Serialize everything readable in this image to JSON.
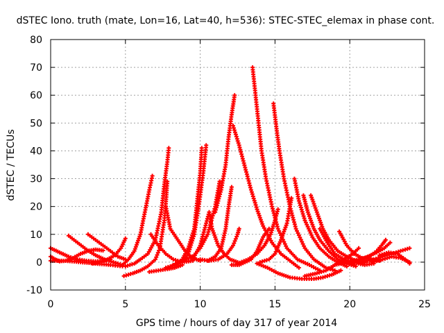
{
  "chart_data": {
    "type": "scatter",
    "title": "dSTEC Iono. truth (mate, Lon=16, Lat=40, h=536): STEC-STEC_elemax in phase cont.",
    "xlabel": "GPS time / hours of day 317 of year 2014",
    "ylabel": "dSTEC  / TECUs",
    "xlim": [
      0,
      25
    ],
    "ylim": [
      -10,
      80
    ],
    "xticks": [
      0,
      5,
      10,
      15,
      20,
      25
    ],
    "yticks": [
      -10,
      0,
      10,
      20,
      30,
      40,
      50,
      60,
      70,
      80
    ],
    "grid": true,
    "marker": "plus",
    "color": "#ff0000",
    "series": [
      {
        "points": [
          [
            0.0,
            5
          ],
          [
            0.6,
            3.5
          ],
          [
            1.2,
            2
          ],
          [
            1.8,
            1
          ],
          [
            2.4,
            0.5
          ],
          [
            3.0,
            0.3
          ],
          [
            3.6,
            0.5
          ],
          [
            4.0,
            1
          ]
        ]
      },
      {
        "points": [
          [
            0.0,
            2
          ],
          [
            0.3,
            1
          ],
          [
            0.6,
            0.3
          ],
          [
            1.0,
            0.5
          ],
          [
            1.5,
            1.5
          ],
          [
            2.0,
            3
          ],
          [
            2.5,
            4
          ],
          [
            3.0,
            4.5
          ],
          [
            3.5,
            4.2
          ]
        ]
      },
      {
        "points": [
          [
            1.2,
            9.5
          ],
          [
            1.8,
            7
          ],
          [
            2.4,
            4.5
          ],
          [
            3.0,
            2.5
          ],
          [
            3.6,
            1
          ],
          [
            4.2,
            0
          ],
          [
            4.8,
            -1
          ]
        ]
      },
      {
        "points": [
          [
            2.5,
            10
          ],
          [
            3.0,
            8
          ],
          [
            3.5,
            6
          ],
          [
            4.0,
            4
          ],
          [
            4.5,
            2
          ],
          [
            5.0,
            1
          ]
        ]
      },
      {
        "points": [
          [
            2.8,
            -0.5
          ],
          [
            3.3,
            0
          ],
          [
            3.8,
            1
          ],
          [
            4.3,
            2.5
          ],
          [
            4.7,
            5
          ],
          [
            5.0,
            8.5
          ]
        ]
      },
      {
        "points": [
          [
            0.0,
            0.5
          ],
          [
            1.0,
            0.5
          ],
          [
            2.0,
            0
          ],
          [
            3.0,
            -0.5
          ],
          [
            4.0,
            -1
          ],
          [
            4.8,
            -1.5
          ]
        ]
      },
      {
        "points": [
          [
            4.8,
            -1
          ],
          [
            5.2,
            1
          ],
          [
            5.6,
            4
          ],
          [
            6.0,
            10
          ],
          [
            6.3,
            18
          ],
          [
            6.6,
            26
          ],
          [
            6.8,
            31
          ]
        ]
      },
      {
        "points": [
          [
            4.9,
            -5
          ],
          [
            5.5,
            -4
          ],
          [
            6.0,
            -3
          ],
          [
            6.5,
            -1.5
          ],
          [
            7.0,
            1
          ],
          [
            7.3,
            5
          ],
          [
            7.6,
            15
          ],
          [
            7.7,
            21
          ],
          [
            7.8,
            29
          ]
        ]
      },
      {
        "points": [
          [
            5.0,
            -1.5
          ],
          [
            5.6,
            -0.5
          ],
          [
            6.0,
            1
          ],
          [
            6.5,
            3
          ],
          [
            7.0,
            8
          ],
          [
            7.4,
            18
          ],
          [
            7.6,
            28
          ],
          [
            7.8,
            36
          ],
          [
            7.9,
            41
          ]
        ]
      },
      {
        "points": [
          [
            6.6,
            -3.5
          ],
          [
            7.2,
            -3
          ],
          [
            7.8,
            -2.5
          ],
          [
            8.3,
            -2
          ],
          [
            8.8,
            -1
          ]
        ]
      },
      {
        "points": [
          [
            6.7,
            10
          ],
          [
            7.2,
            6
          ],
          [
            7.7,
            3
          ],
          [
            8.2,
            1
          ],
          [
            8.8,
            0
          ],
          [
            9.5,
            0.5
          ]
        ]
      },
      {
        "points": [
          [
            7.7,
            20
          ],
          [
            8.0,
            12
          ],
          [
            8.5,
            8
          ],
          [
            9.0,
            4
          ],
          [
            9.5,
            1.5
          ],
          [
            10.0,
            0.5
          ]
        ]
      },
      {
        "points": [
          [
            7.7,
            -2
          ],
          [
            8.3,
            -1
          ],
          [
            8.8,
            1
          ],
          [
            9.2,
            5
          ],
          [
            9.6,
            12
          ],
          [
            9.8,
            22
          ],
          [
            10.0,
            32
          ],
          [
            10.1,
            41
          ]
        ]
      },
      {
        "points": [
          [
            8.2,
            -1
          ],
          [
            8.8,
            0
          ],
          [
            9.2,
            3
          ],
          [
            9.6,
            10
          ],
          [
            9.9,
            20
          ],
          [
            10.2,
            32
          ],
          [
            10.4,
            42
          ]
        ]
      },
      {
        "points": [
          [
            9.0,
            1
          ],
          [
            9.5,
            2
          ],
          [
            10.0,
            5
          ],
          [
            10.5,
            10
          ],
          [
            11.0,
            20
          ],
          [
            11.3,
            29
          ]
        ]
      },
      {
        "points": [
          [
            9.5,
            1
          ],
          [
            10.0,
            6
          ],
          [
            10.4,
            14
          ],
          [
            10.6,
            18
          ],
          [
            10.8,
            12
          ],
          [
            11.2,
            6
          ],
          [
            11.6,
            3
          ],
          [
            12.0,
            1
          ],
          [
            12.5,
            0
          ]
        ]
      },
      {
        "points": [
          [
            10.0,
            1
          ],
          [
            10.6,
            0.5
          ],
          [
            11.2,
            1
          ],
          [
            11.8,
            3
          ],
          [
            12.2,
            6
          ],
          [
            12.5,
            10
          ],
          [
            12.6,
            12
          ]
        ]
      },
      {
        "points": [
          [
            10.5,
            0.5
          ],
          [
            11.0,
            2
          ],
          [
            11.4,
            5
          ],
          [
            11.7,
            12
          ],
          [
            11.9,
            20
          ],
          [
            12.1,
            27
          ]
        ]
      },
      {
        "points": [
          [
            11.0,
            18
          ],
          [
            11.4,
            26
          ],
          [
            11.7,
            35
          ],
          [
            11.9,
            45
          ],
          [
            12.1,
            53
          ],
          [
            12.3,
            60
          ]
        ]
      },
      {
        "points": [
          [
            12.2,
            49
          ],
          [
            12.6,
            42
          ],
          [
            13.0,
            34
          ],
          [
            13.4,
            26
          ],
          [
            13.8,
            19
          ],
          [
            14.2,
            13
          ],
          [
            14.8,
            7
          ],
          [
            15.4,
            3
          ],
          [
            16.0,
            0.5
          ],
          [
            16.6,
            -2
          ]
        ]
      },
      {
        "points": [
          [
            12.1,
            -1
          ],
          [
            12.6,
            -1
          ],
          [
            13.0,
            0
          ],
          [
            13.4,
            1
          ],
          [
            13.8,
            4
          ],
          [
            14.2,
            9
          ],
          [
            14.6,
            12
          ]
        ]
      },
      {
        "points": [
          [
            13.5,
            70
          ],
          [
            13.7,
            60
          ],
          [
            13.9,
            50
          ],
          [
            14.1,
            40
          ],
          [
            14.4,
            30
          ],
          [
            14.8,
            20
          ],
          [
            15.2,
            12
          ],
          [
            15.8,
            5
          ],
          [
            16.5,
            1
          ],
          [
            17.3,
            -1
          ],
          [
            18.0,
            -3
          ]
        ]
      },
      {
        "points": [
          [
            14.9,
            57
          ],
          [
            15.1,
            48
          ],
          [
            15.3,
            40
          ],
          [
            15.6,
            30
          ],
          [
            16.0,
            20
          ],
          [
            16.4,
            12
          ],
          [
            17.0,
            5
          ],
          [
            17.6,
            1
          ],
          [
            18.4,
            -2
          ],
          [
            19.0,
            -3
          ]
        ]
      },
      {
        "points": [
          [
            12.5,
            -0.5
          ],
          [
            13.2,
            1
          ],
          [
            13.8,
            3
          ],
          [
            14.3,
            6
          ],
          [
            14.7,
            10
          ],
          [
            15.0,
            15
          ],
          [
            15.2,
            19
          ]
        ]
      },
      {
        "points": [
          [
            14.0,
            0
          ],
          [
            14.6,
            1
          ],
          [
            15.0,
            3
          ],
          [
            15.4,
            8
          ],
          [
            15.8,
            14
          ],
          [
            16.0,
            20
          ],
          [
            16.1,
            23
          ]
        ]
      },
      {
        "points": [
          [
            13.8,
            -0.5
          ],
          [
            14.5,
            -2
          ],
          [
            15.2,
            -4
          ],
          [
            16.0,
            -5.5
          ],
          [
            16.8,
            -6
          ],
          [
            17.6,
            -6
          ],
          [
            18.2,
            -5.5
          ],
          [
            18.8,
            -4.5
          ],
          [
            19.4,
            -3
          ]
        ]
      },
      {
        "points": [
          [
            16.3,
            30
          ],
          [
            16.6,
            22
          ],
          [
            17.0,
            15
          ],
          [
            17.5,
            9
          ],
          [
            18.0,
            5
          ],
          [
            18.6,
            2
          ],
          [
            19.2,
            0
          ],
          [
            19.8,
            -1.5
          ]
        ]
      },
      {
        "points": [
          [
            16.9,
            24
          ],
          [
            17.2,
            18
          ],
          [
            17.6,
            12
          ],
          [
            18.0,
            8
          ],
          [
            18.6,
            4
          ],
          [
            19.2,
            1
          ],
          [
            19.8,
            -0.5
          ],
          [
            20.4,
            -1.5
          ]
        ]
      },
      {
        "points": [
          [
            17.4,
            24
          ],
          [
            17.8,
            18
          ],
          [
            18.2,
            12
          ],
          [
            18.6,
            8
          ],
          [
            19.2,
            4
          ],
          [
            19.8,
            2
          ],
          [
            20.4,
            0.5
          ],
          [
            21.0,
            0
          ]
        ]
      },
      {
        "points": [
          [
            18.0,
            12
          ],
          [
            18.5,
            7
          ],
          [
            19.0,
            3
          ],
          [
            19.6,
            1
          ],
          [
            20.2,
            0
          ],
          [
            21.0,
            -1
          ],
          [
            21.6,
            -0.5
          ]
        ]
      },
      {
        "points": [
          [
            19.3,
            11
          ],
          [
            19.8,
            6
          ],
          [
            20.3,
            3
          ],
          [
            20.8,
            1.5
          ],
          [
            21.4,
            1
          ],
          [
            22.0,
            0.5
          ]
        ]
      },
      {
        "points": [
          [
            17.0,
            -5
          ],
          [
            17.8,
            -4
          ],
          [
            18.4,
            -3
          ],
          [
            19.0,
            -1
          ],
          [
            19.6,
            1
          ],
          [
            20.2,
            3
          ],
          [
            20.6,
            5
          ]
        ]
      },
      {
        "points": [
          [
            19.0,
            -1
          ],
          [
            19.8,
            0
          ],
          [
            20.6,
            1
          ],
          [
            21.3,
            2
          ],
          [
            21.8,
            4
          ],
          [
            22.2,
            6.5
          ],
          [
            22.4,
            8
          ]
        ]
      },
      {
        "points": [
          [
            20.0,
            -0.5
          ],
          [
            20.8,
            0
          ],
          [
            21.6,
            1
          ],
          [
            22.2,
            2
          ],
          [
            22.8,
            3
          ],
          [
            23.4,
            4
          ],
          [
            24.0,
            5
          ]
        ]
      },
      {
        "points": [
          [
            20.6,
            0.5
          ],
          [
            21.2,
            2
          ],
          [
            21.8,
            3.5
          ],
          [
            22.3,
            5
          ],
          [
            22.7,
            7
          ]
        ]
      },
      {
        "points": [
          [
            21.5,
            0
          ],
          [
            22.2,
            1
          ],
          [
            22.8,
            2
          ],
          [
            23.4,
            1.5
          ],
          [
            24.0,
            0
          ]
        ]
      },
      {
        "points": [
          [
            22.0,
            2.5
          ],
          [
            22.6,
            3.5
          ],
          [
            23.2,
            3
          ],
          [
            23.7,
            1
          ],
          [
            24.0,
            -0.5
          ]
        ]
      }
    ]
  }
}
